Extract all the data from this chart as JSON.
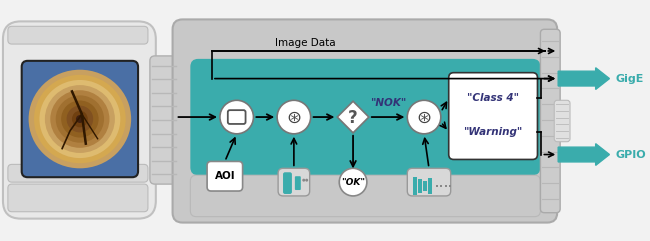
{
  "fig_width": 6.5,
  "fig_height": 2.41,
  "dpi": 100,
  "bg_color": "#f2f2f2",
  "teal_color": "#3aacac",
  "teal_dark": "#2a9090",
  "white": "#ffffff",
  "black": "#000000",
  "gray_body": "#d0d0d0",
  "gray_light": "#c8c8c8",
  "gray_med": "#b0b0b0",
  "gray_dark": "#888888",
  "connector_gray": "#c0c0c0",
  "image_data_text": "Image Data",
  "gige_text": "GigE",
  "gpio_text": "GPIO",
  "aoi_text": "AOI",
  "nok_text": "\"NOK\"",
  "ok_text": "\"OK\"",
  "class4_text": "\"Class 4\"",
  "warning_text": "\"Warning\"",
  "question_mark": "?"
}
